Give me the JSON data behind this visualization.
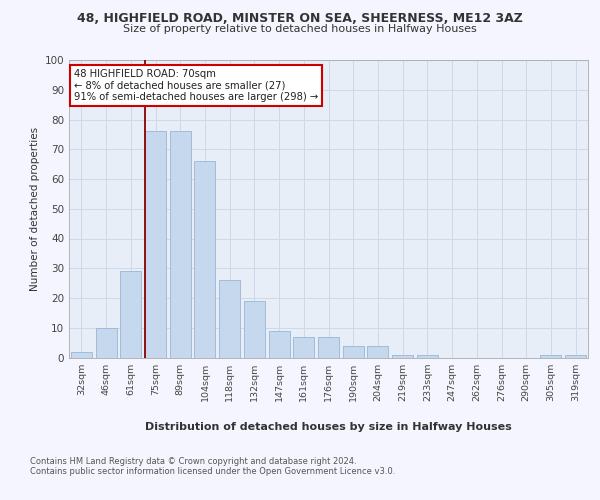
{
  "title_line1": "48, HIGHFIELD ROAD, MINSTER ON SEA, SHEERNESS, ME12 3AZ",
  "title_line2": "Size of property relative to detached houses in Halfway Houses",
  "xlabel": "Distribution of detached houses by size in Halfway Houses",
  "ylabel": "Number of detached properties",
  "categories": [
    "32sqm",
    "46sqm",
    "61sqm",
    "75sqm",
    "89sqm",
    "104sqm",
    "118sqm",
    "132sqm",
    "147sqm",
    "161sqm",
    "176sqm",
    "190sqm",
    "204sqm",
    "219sqm",
    "233sqm",
    "247sqm",
    "262sqm",
    "276sqm",
    "290sqm",
    "305sqm",
    "319sqm"
  ],
  "values": [
    2,
    10,
    29,
    76,
    76,
    66,
    26,
    19,
    9,
    7,
    7,
    4,
    4,
    1,
    1,
    0,
    0,
    0,
    0,
    1,
    1
  ],
  "bar_color": "#c5d8ed",
  "bar_edge_color": "#a0bcd8",
  "vline_color": "#8b0000",
  "annotation_text": "48 HIGHFIELD ROAD: 70sqm\n← 8% of detached houses are smaller (27)\n91% of semi-detached houses are larger (298) →",
  "annotation_box_color": "#ffffff",
  "annotation_box_edge": "#cc0000",
  "ylim": [
    0,
    100
  ],
  "yticks": [
    0,
    10,
    20,
    30,
    40,
    50,
    60,
    70,
    80,
    90,
    100
  ],
  "grid_color": "#d0d8e8",
  "footer_line1": "Contains HM Land Registry data © Crown copyright and database right 2024.",
  "footer_line2": "Contains public sector information licensed under the Open Government Licence v3.0.",
  "bg_color": "#e8eef8",
  "fig_bg_color": "#f5f5ff"
}
